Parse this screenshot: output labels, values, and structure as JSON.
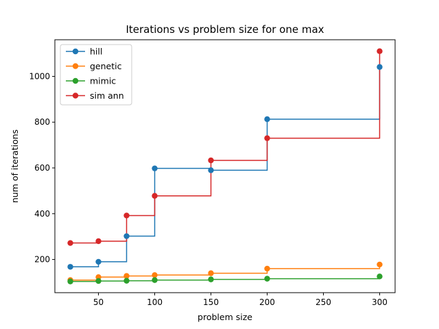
{
  "chart_data": {
    "type": "line",
    "title": "Iterations vs problem size for one max",
    "xlabel": "problem size",
    "ylabel": "num of iterations",
    "x": [
      25,
      50,
      75,
      100,
      150,
      200,
      300
    ],
    "xticks": [
      50,
      100,
      150,
      200,
      250,
      300
    ],
    "yticks": [
      200,
      400,
      600,
      800,
      1000
    ],
    "xlim": [
      11.25,
      313.75
    ],
    "ylim": [
      55,
      1160
    ],
    "grid": false,
    "legend_position": "top-left",
    "step_style": "post",
    "series": [
      {
        "name": "hill",
        "color": "#1f77b4",
        "values": [
          168,
          190,
          302,
          598,
          590,
          813,
          1041
        ]
      },
      {
        "name": "genetic",
        "color": "#ff7f0e",
        "values": [
          110,
          123,
          128,
          132,
          140,
          160,
          178
        ]
      },
      {
        "name": "mimic",
        "color": "#2ca02c",
        "values": [
          104,
          106,
          107,
          110,
          113,
          116,
          126
        ]
      },
      {
        "name": "sim ann",
        "color": "#d62728",
        "values": [
          272,
          280,
          392,
          478,
          633,
          730,
          1110
        ]
      }
    ]
  }
}
